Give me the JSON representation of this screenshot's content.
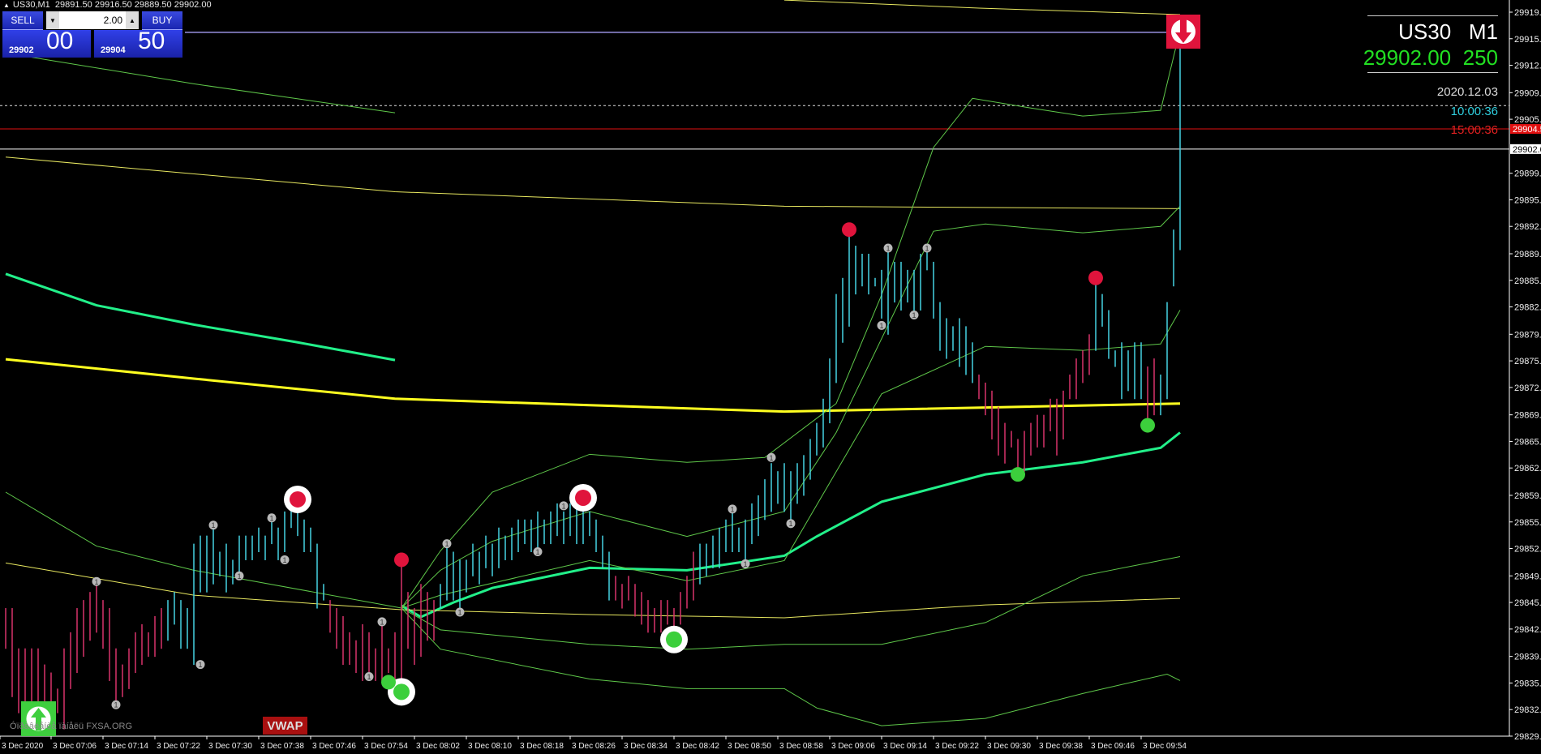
{
  "header": {
    "symbol_tf": "US30,M1",
    "ohlc": "29891.50 29916.50 29889.50 29902.00"
  },
  "one_click": {
    "sell_label": "SELL",
    "buy_label": "BUY",
    "lot": "2.00",
    "sell_small": "29902",
    "sell_big": "00",
    "buy_small": "29904",
    "buy_big": "50"
  },
  "info_panel": {
    "symbol": "US30",
    "timeframe": "M1",
    "price": "29902.00",
    "spread": "250",
    "date": "2020.12.03",
    "time": "10:00:36",
    "countdown": "15:00:36"
  },
  "watermark": "Óïðàâëåíèå ïàíåëü FXSA.ORG",
  "vwap_label": "VWAP",
  "colors": {
    "bull": "#45d2e2",
    "bear": "#d8336b",
    "thick_green": "#22f08a",
    "thin_green": "#5fc84a",
    "yellow": "#ffff20",
    "thin_yellow": "#e8e860",
    "purple": "#9a90e0",
    "red_level": "#e01010",
    "signal_red": "#e0143c",
    "signal_green": "#3ccf3c"
  },
  "price_axis": [
    "29919.0",
    "29915.7",
    "29912.4",
    "29909.0",
    "29905.7",
    "29899.0",
    "29895.7",
    "29892.4",
    "29889.0",
    "29885.7",
    "29882.4",
    "29879.0",
    "29875.7",
    "29872.4",
    "29869.0",
    "29865.7",
    "29862.4",
    "29859.0",
    "29855.7",
    "29852.4",
    "29849.0",
    "29845.7",
    "29842.4",
    "29839.0",
    "29835.7",
    "29832.4",
    "29829.1"
  ],
  "price_tags": {
    "bid_line": "29904.5",
    "last_line": "29902.0"
  },
  "levels": {
    "high_line": 29916.5,
    "dotted_line": 29907.4,
    "bid_line": 29904.5,
    "last_line": 29902.0
  },
  "time_axis": [
    "3 Dec 2020",
    "3 Dec 07:06",
    "3 Dec 07:14",
    "3 Dec 07:22",
    "3 Dec 07:30",
    "3 Dec 07:38",
    "3 Dec 07:46",
    "3 Dec 07:54",
    "3 Dec 08:02",
    "3 Dec 08:10",
    "3 Dec 08:18",
    "3 Dec 08:26",
    "3 Dec 08:34",
    "3 Dec 08:42",
    "3 Dec 08:50",
    "3 Dec 08:58",
    "3 Dec 09:06",
    "3 Dec 09:14",
    "3 Dec 09:22",
    "3 Dec 09:30",
    "3 Dec 09:38",
    "3 Dec 09:46",
    "3 Dec 09:54"
  ],
  "bars_first_time": "06:59",
  "bars": [
    [
      29845,
      29840,
      "d"
    ],
    [
      29845,
      29834,
      "d"
    ],
    [
      29840,
      29832,
      "d"
    ],
    [
      29840,
      29832,
      "d"
    ],
    [
      29840,
      29831,
      "d"
    ],
    [
      29840,
      29832,
      "d"
    ],
    [
      29838,
      29832,
      "d"
    ],
    [
      29837,
      29833,
      "d"
    ],
    [
      29835,
      29832,
      "d"
    ],
    [
      29840,
      29830,
      "d"
    ],
    [
      29842,
      29835,
      "d"
    ],
    [
      29845,
      29837,
      "d"
    ],
    [
      29846,
      29839,
      "d"
    ],
    [
      29847,
      29841,
      "d"
    ],
    [
      29848,
      29842,
      "d"
    ],
    [
      29846,
      29840,
      "d"
    ],
    [
      29845,
      29836,
      "d"
    ],
    [
      29840,
      29833,
      "d"
    ],
    [
      29838,
      29834,
      "d"
    ],
    [
      29840,
      29835,
      "d"
    ],
    [
      29842,
      29837,
      "d"
    ],
    [
      29843,
      29838,
      "d"
    ],
    [
      29842,
      29839,
      "d"
    ],
    [
      29844,
      29839,
      "d"
    ],
    [
      29845,
      29840,
      "d"
    ],
    [
      29846,
      29841,
      "u"
    ],
    [
      29847,
      29843,
      "u"
    ],
    [
      29846,
      29840,
      "u"
    ],
    [
      29845,
      29840,
      "u"
    ],
    [
      29853,
      29838,
      "u"
    ],
    [
      29854,
      29847,
      "u"
    ],
    [
      29854,
      29847,
      "u"
    ],
    [
      29855,
      29848,
      "u"
    ],
    [
      29852,
      29849,
      "u"
    ],
    [
      29853,
      29847,
      "u"
    ],
    [
      29851,
      29848,
      "u"
    ],
    [
      29854,
      29849,
      "u"
    ],
    [
      29854,
      29851,
      "u"
    ],
    [
      29854,
      29851,
      "u"
    ],
    [
      29855,
      29852,
      "u"
    ],
    [
      29854,
      29851,
      "u"
    ],
    [
      29856,
      29853,
      "u"
    ],
    [
      29855,
      29851,
      "u"
    ],
    [
      29857,
      29852,
      "u"
    ],
    [
      29858,
      29855,
      "u"
    ],
    [
      29858,
      29854,
      "u"
    ],
    [
      29856,
      29852,
      "u"
    ],
    [
      29855,
      29852,
      "u"
    ],
    [
      29853,
      29845,
      "u"
    ],
    [
      29848,
      29846,
      "u"
    ],
    [
      29846,
      29842,
      "d"
    ],
    [
      29845,
      29840,
      "d"
    ],
    [
      29844,
      29838,
      "d"
    ],
    [
      29842,
      29838,
      "d"
    ],
    [
      29841,
      29837,
      "d"
    ],
    [
      29843,
      29836,
      "d"
    ],
    [
      29842,
      29837,
      "d"
    ],
    [
      29840,
      29836,
      "d"
    ],
    [
      29843,
      29836,
      "d"
    ],
    [
      29840,
      29837,
      "d"
    ],
    [
      29842,
      29835,
      "d"
    ],
    [
      29851,
      29835,
      "d"
    ],
    [
      29847,
      29840,
      "d"
    ],
    [
      29845,
      29838,
      "d"
    ],
    [
      29848,
      29839,
      "d"
    ],
    [
      29847,
      29841,
      "d"
    ],
    [
      29846,
      29841,
      "d"
    ],
    [
      29848,
      29845,
      "u"
    ],
    [
      29853,
      29846,
      "u"
    ],
    [
      29852,
      29846,
      "u"
    ],
    [
      29851,
      29844,
      "u"
    ],
    [
      29851,
      29847,
      "u"
    ],
    [
      29853,
      29849,
      "u"
    ],
    [
      29852,
      29848,
      "u"
    ],
    [
      29854,
      29850,
      "u"
    ],
    [
      29853,
      29849,
      "u"
    ],
    [
      29855,
      29850,
      "u"
    ],
    [
      29854,
      29851,
      "u"
    ],
    [
      29855,
      29851,
      "u"
    ],
    [
      29856,
      29852,
      "u"
    ],
    [
      29856,
      29853,
      "u"
    ],
    [
      29856,
      29852,
      "u"
    ],
    [
      29857,
      29852,
      "u"
    ],
    [
      29856,
      29853,
      "u"
    ],
    [
      29857,
      29853,
      "u"
    ],
    [
      29858,
      29854,
      "u"
    ],
    [
      29857,
      29853,
      "u"
    ],
    [
      29858,
      29854,
      "u"
    ],
    [
      29858,
      29853,
      "u"
    ],
    [
      29858,
      29853,
      "u"
    ],
    [
      29857,
      29854,
      "u"
    ],
    [
      29856,
      29852,
      "u"
    ],
    [
      29854,
      29850,
      "u"
    ],
    [
      29852,
      29846,
      "u"
    ],
    [
      29849,
      29846,
      "d"
    ],
    [
      29848,
      29845,
      "d"
    ],
    [
      29849,
      29846,
      "d"
    ],
    [
      29848,
      29844,
      "d"
    ],
    [
      29847,
      29843,
      "d"
    ],
    [
      29846,
      29842,
      "d"
    ],
    [
      29845,
      29842,
      "d"
    ],
    [
      29846,
      29842,
      "d"
    ],
    [
      29846,
      29843,
      "d"
    ],
    [
      29845,
      29841,
      "d"
    ],
    [
      29847,
      29843,
      "d"
    ],
    [
      29849,
      29845,
      "d"
    ],
    [
      29852,
      29846,
      "d"
    ],
    [
      29853,
      29848,
      "u"
    ],
    [
      29853,
      29849,
      "u"
    ],
    [
      29854,
      29850,
      "u"
    ],
    [
      29855,
      29850,
      "u"
    ],
    [
      29856,
      29852,
      "u"
    ],
    [
      29857,
      29852,
      "u"
    ],
    [
      29855,
      29852,
      "u"
    ],
    [
      29856,
      29850,
      "u"
    ],
    [
      29858,
      29853,
      "u"
    ],
    [
      29859,
      29854,
      "u"
    ],
    [
      29861,
      29856,
      "u"
    ],
    [
      29863,
      29857,
      "u"
    ],
    [
      29862,
      29858,
      "u"
    ],
    [
      29863,
      29857,
      "u"
    ],
    [
      29862,
      29855,
      "u"
    ],
    [
      29863,
      29858,
      "u"
    ],
    [
      29864,
      29859,
      "u"
    ],
    [
      29866,
      29861,
      "u"
    ],
    [
      29868,
      29864,
      "u"
    ],
    [
      29871,
      29865,
      "u"
    ],
    [
      29876,
      29868,
      "u"
    ],
    [
      29884,
      29873,
      "u"
    ],
    [
      29886,
      29878,
      "u"
    ],
    [
      29892,
      29880,
      "u"
    ],
    [
      29890,
      29884,
      "u"
    ],
    [
      29889,
      29885,
      "u"
    ],
    [
      29889,
      29884,
      "u"
    ],
    [
      29886,
      29885,
      "u"
    ],
    [
      29887,
      29881,
      "u"
    ],
    [
      29890,
      29879,
      "u"
    ],
    [
      29888,
      29883,
      "u"
    ],
    [
      29888,
      29882,
      "u"
    ],
    [
      29887,
      29883,
      "u"
    ],
    [
      29887,
      29881,
      "u"
    ],
    [
      29889,
      29882,
      "u"
    ],
    [
      29890,
      29887,
      "u"
    ],
    [
      29888,
      29881,
      "u"
    ],
    [
      29883,
      29877,
      "u"
    ],
    [
      29881,
      29876,
      "u"
    ],
    [
      29880,
      29877,
      "u"
    ],
    [
      29881,
      29875,
      "u"
    ],
    [
      29880,
      29874,
      "u"
    ],
    [
      29878,
      29873,
      "u"
    ],
    [
      29874,
      29871,
      "d"
    ],
    [
      29873,
      29869,
      "d"
    ],
    [
      29872,
      29866,
      "d"
    ],
    [
      29870,
      29864,
      "d"
    ],
    [
      29868,
      29863,
      "d"
    ],
    [
      29867,
      29865,
      "d"
    ],
    [
      29866,
      29861,
      "d"
    ],
    [
      29867,
      29862,
      "d"
    ],
    [
      29868,
      29864,
      "d"
    ],
    [
      29869,
      29865,
      "d"
    ],
    [
      29869,
      29865,
      "d"
    ],
    [
      29871,
      29867,
      "d"
    ],
    [
      29871,
      29864,
      "d"
    ],
    [
      29872,
      29866,
      "d"
    ],
    [
      29874,
      29871,
      "d"
    ],
    [
      29876,
      29871,
      "d"
    ],
    [
      29877,
      29873,
      "d"
    ],
    [
      29879,
      29874,
      "d"
    ],
    [
      29886,
      29877,
      "u"
    ],
    [
      29884,
      29880,
      "u"
    ],
    [
      29882,
      29876,
      "u"
    ],
    [
      29877,
      29875,
      "u"
    ],
    [
      29878,
      29871,
      "u"
    ],
    [
      29877,
      29872,
      "u"
    ],
    [
      29878,
      29871,
      "u"
    ],
    [
      29878,
      29871,
      "u"
    ],
    [
      29875,
      29868,
      "d"
    ],
    [
      29876,
      29869,
      "d"
    ],
    [
      29874,
      29869,
      "u"
    ],
    [
      29883,
      29871,
      "u"
    ],
    [
      29892,
      29885,
      "u"
    ],
    [
      29916.5,
      29889.5,
      "u"
    ]
  ],
  "indicators": [
    {
      "id": "vwap-line",
      "style": "yellow",
      "width": 3,
      "points": [
        [
          0,
          29875.9
        ],
        [
          29,
          29873.5
        ],
        [
          60,
          29871.0
        ],
        [
          90,
          29870.2
        ],
        [
          120,
          29869.4
        ],
        [
          181,
          29870.4
        ]
      ]
    },
    {
      "id": "ma-thick-1",
      "style": "thick_green",
      "width": 3,
      "points": [
        [
          0,
          29886.5
        ],
        [
          14,
          29882.6
        ],
        [
          29,
          29880.2
        ],
        [
          45,
          29878.0
        ],
        [
          60,
          29875.8
        ]
      ]
    },
    {
      "id": "ma-thick-2",
      "style": "thick_green",
      "width": 3,
      "points": [
        [
          61,
          29845.3
        ],
        [
          64,
          29843.9
        ],
        [
          69,
          29845.7
        ],
        [
          75,
          29847.5
        ],
        [
          90,
          29850.0
        ],
        [
          105,
          29849.7
        ],
        [
          120,
          29851.5
        ],
        [
          125,
          29853.9
        ],
        [
          135,
          29858.2
        ],
        [
          151,
          29861.6
        ],
        [
          166,
          29863.1
        ],
        [
          178,
          29864.9
        ],
        [
          181,
          29866.8
        ]
      ]
    },
    {
      "id": "yellow-thin-top",
      "style": "thin_yellow",
      "width": 1,
      "points": [
        [
          120,
          29920.5
        ],
        [
          150,
          29919.5
        ],
        [
          181,
          29918.7
        ]
      ]
    },
    {
      "id": "yellow-thin-2",
      "style": "thin_yellow",
      "width": 1,
      "points": [
        [
          0,
          29901.0
        ],
        [
          60,
          29896.7
        ],
        [
          120,
          29894.9
        ],
        [
          181,
          29894.6
        ]
      ]
    },
    {
      "id": "green-thin-top",
      "style": "thin_green",
      "width": 1,
      "points": [
        [
          4,
          29913.4
        ],
        [
          29,
          29910.1
        ],
        [
          60,
          29906.5
        ]
      ]
    },
    {
      "id": "yellow-thin-low",
      "style": "thin_yellow",
      "width": 1,
      "points": [
        [
          0,
          29850.6
        ],
        [
          29,
          29846.6
        ],
        [
          61,
          29844.8
        ],
        [
          90,
          29844.2
        ],
        [
          120,
          29843.8
        ],
        [
          151,
          29845.4
        ],
        [
          181,
          29846.2
        ]
      ]
    },
    {
      "id": "green-thin-low-left",
      "style": "thin_green",
      "width": 1,
      "points": [
        [
          0,
          29859.4
        ],
        [
          14,
          29852.7
        ],
        [
          29,
          29849.7
        ],
        [
          61,
          29845.0
        ]
      ]
    },
    {
      "id": "band-1",
      "style": "thin_green",
      "width": 1,
      "points": [
        [
          61,
          29845
        ],
        [
          67,
          29852.1
        ],
        [
          75,
          29859.4
        ],
        [
          90,
          29864.1
        ],
        [
          105,
          29863.1
        ],
        [
          117,
          29863.7
        ],
        [
          128,
          29870.4
        ],
        [
          135,
          29883.9
        ],
        [
          143,
          29902.2
        ],
        [
          149,
          29908.3
        ],
        [
          158,
          29907.1
        ],
        [
          166,
          29906.1
        ],
        [
          178,
          29906.8
        ],
        [
          181,
          29916.8
        ]
      ]
    },
    {
      "id": "band-2",
      "style": "thin_green",
      "width": 1,
      "points": [
        [
          61,
          29845
        ],
        [
          67,
          29849.7
        ],
        [
          75,
          29853.3
        ],
        [
          90,
          29857
        ],
        [
          105,
          29853.9
        ],
        [
          120,
          29857
        ],
        [
          128,
          29866.8
        ],
        [
          143,
          29891.8
        ],
        [
          151,
          29892.7
        ],
        [
          166,
          29891.6
        ],
        [
          178,
          29892.4
        ],
        [
          181,
          29894.9
        ]
      ]
    },
    {
      "id": "band-3",
      "style": "thin_green",
      "width": 1,
      "points": [
        [
          61,
          29845
        ],
        [
          67,
          29846.6
        ],
        [
          90,
          29850.9
        ],
        [
          105,
          29848.4
        ],
        [
          120,
          29850.9
        ],
        [
          135,
          29871.6
        ],
        [
          151,
          29877.5
        ],
        [
          166,
          29877
        ],
        [
          178,
          29877.8
        ],
        [
          181,
          29882
        ]
      ]
    },
    {
      "id": "band-4",
      "style": "thin_green",
      "width": 1,
      "points": [
        [
          61,
          29845
        ],
        [
          67,
          29842.3
        ],
        [
          90,
          29840.5
        ],
        [
          105,
          29839.9
        ],
        [
          120,
          29840.5
        ],
        [
          135,
          29840.5
        ],
        [
          151,
          29843.2
        ],
        [
          166,
          29849.0
        ],
        [
          181,
          29851.4
        ]
      ]
    },
    {
      "id": "band-5",
      "style": "thin_green",
      "width": 1,
      "points": [
        [
          61,
          29845
        ],
        [
          67,
          29839.9
        ],
        [
          90,
          29836.2
        ],
        [
          105,
          29835
        ],
        [
          120,
          29835
        ],
        [
          125,
          29832.6
        ],
        [
          135,
          29830.4
        ],
        [
          151,
          29831.3
        ],
        [
          166,
          29834.4
        ],
        [
          179,
          29836.8
        ],
        [
          181,
          29836
        ]
      ]
    }
  ],
  "signals": [
    {
      "type": "red-dot",
      "bar": 61,
      "price": 29851
    },
    {
      "type": "red-dot",
      "bar": 130,
      "price": 29892
    },
    {
      "type": "red-dot",
      "bar": 168,
      "price": 29886
    },
    {
      "type": "red-ring",
      "bar": 45,
      "price": 29858.5
    },
    {
      "type": "red-ring",
      "bar": 89,
      "price": 29858.7
    },
    {
      "type": "green-ring",
      "bar": 61,
      "price": 29834.6
    },
    {
      "type": "green-ring",
      "bar": 103,
      "price": 29841.1
    },
    {
      "type": "green-dot",
      "bar": 59,
      "price": 29835.8
    },
    {
      "type": "green-dot",
      "bar": 156,
      "price": 29861.6
    },
    {
      "type": "green-dot",
      "bar": 176,
      "price": 29867.7
    }
  ],
  "fractal_label": "1",
  "fractals": [
    [
      14,
      29848.3
    ],
    [
      17,
      29833.0
    ],
    [
      30,
      29838.0
    ],
    [
      32,
      29855.3
    ],
    [
      36,
      29849.0
    ],
    [
      41,
      29856.2
    ],
    [
      43,
      29851.0
    ],
    [
      56,
      29836.5
    ],
    [
      58,
      29843.3
    ],
    [
      68,
      29853.0
    ],
    [
      70,
      29844.5
    ],
    [
      82,
      29852.0
    ],
    [
      86,
      29857.7
    ],
    [
      112,
      29857.3
    ],
    [
      114,
      29850.5
    ],
    [
      118,
      29863.7
    ],
    [
      121,
      29855.5
    ],
    [
      135,
      29880.1
    ],
    [
      136,
      29889.7
    ],
    [
      140,
      29881.4
    ],
    [
      142,
      29889.7
    ]
  ]
}
